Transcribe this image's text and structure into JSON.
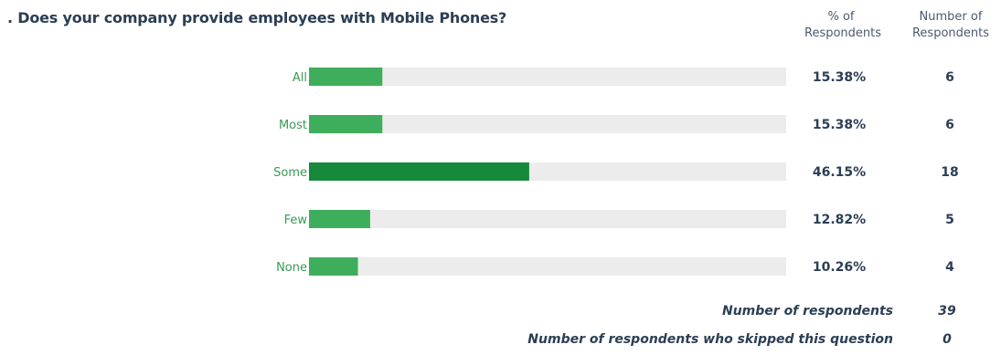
{
  "question": ". Does your company provide employees with Mobile Phones?",
  "columns": {
    "percent_header_line1": "% of",
    "percent_header_line2": "Respondents",
    "count_header_line1": "Number of",
    "count_header_line2": "Respondents"
  },
  "chart_data": {
    "type": "bar",
    "orientation": "horizontal",
    "categories": [
      "All",
      "Most",
      "Some",
      "Few",
      "None"
    ],
    "values": [
      15.38,
      15.38,
      46.15,
      12.82,
      10.26
    ],
    "value_labels": [
      "15.38%",
      "15.38%",
      "46.15%",
      "12.82%",
      "10.26%"
    ],
    "counts": [
      6,
      6,
      18,
      5,
      4
    ],
    "count_labels": [
      "6",
      "6",
      "18",
      "5",
      "4"
    ],
    "xlim": [
      0,
      100
    ],
    "colors": {
      "bar": "#3fae5c",
      "bar_highlight": "#168a3a",
      "track": "#ececec",
      "label": "#3a9a55"
    }
  },
  "summary": {
    "respondents_label": "Number of respondents",
    "respondents_value": "39",
    "skipped_label": "Number of respondents who skipped this question",
    "skipped_value": "0"
  }
}
